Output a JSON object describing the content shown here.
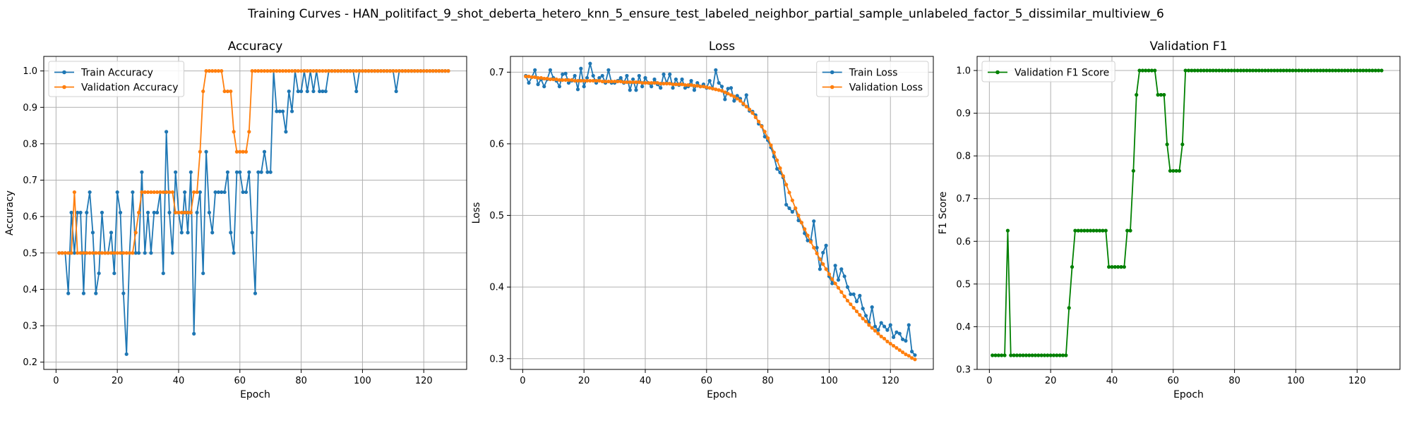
{
  "figure": {
    "suptitle": "Training Curves - HAN_politifact_9_shot_deberta_hetero_knn_5_ensure_test_labeled_neighbor_partial_sample_unlabeled_factor_5_dissimilar_multiview_6"
  },
  "colors": {
    "train": "#1f77b4",
    "validation": "#ff7f0e",
    "f1": "#008000",
    "grid": "#b0b0b0"
  },
  "chart_data": [
    {
      "type": "line",
      "title": "Accuracy",
      "xlabel": "Epoch",
      "ylabel": "Accuracy",
      "xlim": [
        -4,
        134
      ],
      "ylim": [
        0.18,
        1.04
      ],
      "xticks": [
        0,
        20,
        40,
        60,
        80,
        100,
        120
      ],
      "yticks": [
        0.2,
        0.3,
        0.4,
        0.5,
        0.6,
        0.7,
        0.8,
        0.9,
        1.0
      ],
      "ytick_decimals": 1,
      "grid": true,
      "legend_position": "top-left",
      "x": [
        1,
        2,
        3,
        4,
        5,
        6,
        7,
        8,
        9,
        10,
        11,
        12,
        13,
        14,
        15,
        16,
        17,
        18,
        19,
        20,
        21,
        22,
        23,
        24,
        25,
        26,
        27,
        28,
        29,
        30,
        31,
        32,
        33,
        34,
        35,
        36,
        37,
        38,
        39,
        40,
        41,
        42,
        43,
        44,
        45,
        46,
        47,
        48,
        49,
        50,
        51,
        52,
        53,
        54,
        55,
        56,
        57,
        58,
        59,
        60,
        61,
        62,
        63,
        64,
        65,
        66,
        67,
        68,
        69,
        70,
        71,
        72,
        73,
        74,
        75,
        76,
        77,
        78,
        79,
        80,
        81,
        82,
        83,
        84,
        85,
        86,
        87,
        88,
        89,
        90,
        91,
        92,
        93,
        94,
        95,
        96,
        97,
        98,
        99,
        100,
        101,
        102,
        103,
        104,
        105,
        106,
        107,
        108,
        109,
        110,
        111,
        112,
        113,
        114,
        115,
        116,
        117,
        118,
        119,
        120,
        121,
        122,
        123,
        124,
        125,
        126,
        127,
        128
      ],
      "series": [
        {
          "name": "Train Accuracy",
          "color": "#1f77b4",
          "values": [
            0.5,
            0.5,
            0.5,
            0.389,
            0.611,
            0.5,
            0.611,
            0.611,
            0.389,
            0.611,
            0.667,
            0.556,
            0.389,
            0.444,
            0.611,
            0.5,
            0.5,
            0.556,
            0.444,
            0.667,
            0.611,
            0.389,
            0.222,
            0.5,
            0.667,
            0.5,
            0.5,
            0.722,
            0.5,
            0.611,
            0.5,
            0.611,
            0.611,
            0.667,
            0.444,
            0.833,
            0.611,
            0.5,
            0.722,
            0.611,
            0.556,
            0.667,
            0.556,
            0.722,
            0.278,
            0.611,
            0.667,
            0.444,
            0.778,
            0.611,
            0.556,
            0.667,
            0.667,
            0.667,
            0.667,
            0.722,
            0.556,
            0.5,
            0.722,
            0.722,
            0.667,
            0.667,
            0.722,
            0.556,
            0.389,
            0.722,
            0.722,
            0.778,
            0.722,
            0.722,
            1.0,
            0.889,
            0.889,
            0.889,
            0.833,
            0.944,
            0.889,
            1.0,
            0.944,
            0.944,
            1.0,
            0.944,
            1.0,
            0.944,
            1.0,
            0.944,
            0.944,
            0.944,
            1.0,
            1.0,
            1.0,
            1.0,
            1.0,
            1.0,
            1.0,
            1.0,
            1.0,
            0.944,
            1.0,
            1.0,
            1.0,
            1.0,
            1.0,
            1.0,
            1.0,
            1.0,
            1.0,
            1.0,
            1.0,
            1.0,
            0.944,
            1.0,
            1.0,
            1.0,
            1.0,
            1.0,
            1.0,
            1.0,
            1.0,
            1.0,
            1.0,
            1.0,
            1.0,
            1.0,
            1.0,
            1.0,
            1.0,
            1.0
          ]
        },
        {
          "name": "Validation Accuracy",
          "color": "#ff7f0e",
          "values": [
            0.5,
            0.5,
            0.5,
            0.5,
            0.5,
            0.667,
            0.5,
            0.5,
            0.5,
            0.5,
            0.5,
            0.5,
            0.5,
            0.5,
            0.5,
            0.5,
            0.5,
            0.5,
            0.5,
            0.5,
            0.5,
            0.5,
            0.5,
            0.5,
            0.5,
            0.556,
            0.611,
            0.667,
            0.667,
            0.667,
            0.667,
            0.667,
            0.667,
            0.667,
            0.667,
            0.667,
            0.667,
            0.667,
            0.611,
            0.611,
            0.611,
            0.611,
            0.611,
            0.611,
            0.667,
            0.667,
            0.778,
            0.944,
            1.0,
            1.0,
            1.0,
            1.0,
            1.0,
            1.0,
            0.944,
            0.944,
            0.944,
            0.833,
            0.778,
            0.778,
            0.778,
            0.778,
            0.833,
            1.0,
            1.0,
            1.0,
            1.0,
            1.0,
            1.0,
            1.0,
            1.0,
            1.0,
            1.0,
            1.0,
            1.0,
            1.0,
            1.0,
            1.0,
            1.0,
            1.0,
            1.0,
            1.0,
            1.0,
            1.0,
            1.0,
            1.0,
            1.0,
            1.0,
            1.0,
            1.0,
            1.0,
            1.0,
            1.0,
            1.0,
            1.0,
            1.0,
            1.0,
            1.0,
            1.0,
            1.0,
            1.0,
            1.0,
            1.0,
            1.0,
            1.0,
            1.0,
            1.0,
            1.0,
            1.0,
            1.0,
            1.0,
            1.0,
            1.0,
            1.0,
            1.0,
            1.0,
            1.0,
            1.0,
            1.0,
            1.0,
            1.0,
            1.0,
            1.0,
            1.0,
            1.0,
            1.0,
            1.0,
            1.0
          ]
        }
      ]
    },
    {
      "type": "line",
      "title": "Loss",
      "xlabel": "Epoch",
      "ylabel": "Loss",
      "xlim": [
        -4,
        134
      ],
      "ylim": [
        0.285,
        0.722
      ],
      "xticks": [
        0,
        20,
        40,
        60,
        80,
        100,
        120
      ],
      "yticks": [
        0.3,
        0.4,
        0.5,
        0.6,
        0.7
      ],
      "ytick_decimals": 1,
      "grid": true,
      "legend_position": "top-right",
      "x": [
        1,
        2,
        3,
        4,
        5,
        6,
        7,
        8,
        9,
        10,
        11,
        12,
        13,
        14,
        15,
        16,
        17,
        18,
        19,
        20,
        21,
        22,
        23,
        24,
        25,
        26,
        27,
        28,
        29,
        30,
        31,
        32,
        33,
        34,
        35,
        36,
        37,
        38,
        39,
        40,
        41,
        42,
        43,
        44,
        45,
        46,
        47,
        48,
        49,
        50,
        51,
        52,
        53,
        54,
        55,
        56,
        57,
        58,
        59,
        60,
        61,
        62,
        63,
        64,
        65,
        66,
        67,
        68,
        69,
        70,
        71,
        72,
        73,
        74,
        75,
        76,
        77,
        78,
        79,
        80,
        81,
        82,
        83,
        84,
        85,
        86,
        87,
        88,
        89,
        90,
        91,
        92,
        93,
        94,
        95,
        96,
        97,
        98,
        99,
        100,
        101,
        102,
        103,
        104,
        105,
        106,
        107,
        108,
        109,
        110,
        111,
        112,
        113,
        114,
        115,
        116,
        117,
        118,
        119,
        120,
        121,
        122,
        123,
        124,
        125,
        126,
        127,
        128
      ],
      "series": [
        {
          "name": "Train Loss",
          "color": "#1f77b4",
          "values": [
            0.695,
            0.685,
            0.693,
            0.703,
            0.683,
            0.69,
            0.68,
            0.69,
            0.703,
            0.692,
            0.688,
            0.68,
            0.697,
            0.698,
            0.685,
            0.688,
            0.695,
            0.676,
            0.705,
            0.68,
            0.692,
            0.712,
            0.695,
            0.685,
            0.692,
            0.695,
            0.685,
            0.703,
            0.685,
            0.685,
            0.688,
            0.692,
            0.685,
            0.695,
            0.675,
            0.69,
            0.675,
            0.695,
            0.68,
            0.692,
            0.685,
            0.68,
            0.69,
            0.683,
            0.678,
            0.697,
            0.685,
            0.697,
            0.678,
            0.69,
            0.682,
            0.69,
            0.678,
            0.68,
            0.688,
            0.675,
            0.685,
            0.68,
            0.683,
            0.678,
            0.688,
            0.677,
            0.703,
            0.685,
            0.68,
            0.662,
            0.677,
            0.678,
            0.66,
            0.667,
            0.663,
            0.655,
            0.668,
            0.646,
            0.645,
            0.64,
            0.628,
            0.625,
            0.61,
            0.605,
            0.595,
            0.582,
            0.565,
            0.56,
            0.553,
            0.515,
            0.51,
            0.505,
            0.51,
            0.493,
            0.49,
            0.475,
            0.465,
            0.465,
            0.492,
            0.455,
            0.425,
            0.448,
            0.458,
            0.415,
            0.405,
            0.43,
            0.41,
            0.425,
            0.415,
            0.4,
            0.39,
            0.39,
            0.38,
            0.388,
            0.37,
            0.36,
            0.35,
            0.372,
            0.345,
            0.34,
            0.35,
            0.345,
            0.34,
            0.347,
            0.33,
            0.337,
            0.335,
            0.327,
            0.325,
            0.347,
            0.31,
            0.305
          ]
        },
        {
          "name": "Validation Loss",
          "color": "#ff7f0e",
          "values": [
            0.694,
            0.694,
            0.693,
            0.693,
            0.692,
            0.692,
            0.691,
            0.691,
            0.69,
            0.69,
            0.69,
            0.689,
            0.689,
            0.689,
            0.689,
            0.689,
            0.688,
            0.688,
            0.688,
            0.688,
            0.688,
            0.688,
            0.688,
            0.688,
            0.688,
            0.687,
            0.687,
            0.687,
            0.687,
            0.687,
            0.687,
            0.687,
            0.686,
            0.686,
            0.686,
            0.686,
            0.686,
            0.686,
            0.685,
            0.685,
            0.685,
            0.685,
            0.685,
            0.685,
            0.684,
            0.684,
            0.684,
            0.684,
            0.683,
            0.683,
            0.683,
            0.683,
            0.682,
            0.682,
            0.682,
            0.681,
            0.681,
            0.68,
            0.68,
            0.679,
            0.678,
            0.677,
            0.676,
            0.675,
            0.674,
            0.672,
            0.67,
            0.668,
            0.666,
            0.663,
            0.66,
            0.656,
            0.652,
            0.648,
            0.643,
            0.637,
            0.631,
            0.624,
            0.617,
            0.608,
            0.598,
            0.588,
            0.577,
            0.566,
            0.555,
            0.543,
            0.532,
            0.521,
            0.51,
            0.5,
            0.49,
            0.481,
            0.472,
            0.463,
            0.455,
            0.447,
            0.439,
            0.432,
            0.425,
            0.418,
            0.411,
            0.405,
            0.399,
            0.393,
            0.387,
            0.381,
            0.376,
            0.371,
            0.366,
            0.361,
            0.356,
            0.352,
            0.347,
            0.343,
            0.339,
            0.335,
            0.331,
            0.328,
            0.324,
            0.321,
            0.318,
            0.315,
            0.312,
            0.309,
            0.306,
            0.304,
            0.301,
            0.299
          ]
        }
      ]
    },
    {
      "type": "line",
      "title": "Validation F1",
      "xlabel": "Epoch",
      "ylabel": "F1 Score",
      "xlim": [
        -4,
        134
      ],
      "ylim": [
        0.3,
        1.033
      ],
      "xticks": [
        0,
        20,
        40,
        60,
        80,
        100,
        120
      ],
      "yticks": [
        0.3,
        0.4,
        0.5,
        0.6,
        0.7,
        0.8,
        0.9,
        1.0
      ],
      "ytick_decimals": 1,
      "grid": true,
      "legend_position": "top-left",
      "x": [
        1,
        2,
        3,
        4,
        5,
        6,
        7,
        8,
        9,
        10,
        11,
        12,
        13,
        14,
        15,
        16,
        17,
        18,
        19,
        20,
        21,
        22,
        23,
        24,
        25,
        26,
        27,
        28,
        29,
        30,
        31,
        32,
        33,
        34,
        35,
        36,
        37,
        38,
        39,
        40,
        41,
        42,
        43,
        44,
        45,
        46,
        47,
        48,
        49,
        50,
        51,
        52,
        53,
        54,
        55,
        56,
        57,
        58,
        59,
        60,
        61,
        62,
        63,
        64,
        65,
        66,
        67,
        68,
        69,
        70,
        71,
        72,
        73,
        74,
        75,
        76,
        77,
        78,
        79,
        80,
        81,
        82,
        83,
        84,
        85,
        86,
        87,
        88,
        89,
        90,
        91,
        92,
        93,
        94,
        95,
        96,
        97,
        98,
        99,
        100,
        101,
        102,
        103,
        104,
        105,
        106,
        107,
        108,
        109,
        110,
        111,
        112,
        113,
        114,
        115,
        116,
        117,
        118,
        119,
        120,
        121,
        122,
        123,
        124,
        125,
        126,
        127,
        128
      ],
      "series": [
        {
          "name": "Validation F1 Score",
          "color": "#008000",
          "values": [
            0.333,
            0.333,
            0.333,
            0.333,
            0.333,
            0.625,
            0.333,
            0.333,
            0.333,
            0.333,
            0.333,
            0.333,
            0.333,
            0.333,
            0.333,
            0.333,
            0.333,
            0.333,
            0.333,
            0.333,
            0.333,
            0.333,
            0.333,
            0.333,
            0.333,
            0.444,
            0.54,
            0.625,
            0.625,
            0.625,
            0.625,
            0.625,
            0.625,
            0.625,
            0.625,
            0.625,
            0.625,
            0.625,
            0.54,
            0.54,
            0.54,
            0.54,
            0.54,
            0.54,
            0.625,
            0.625,
            0.765,
            0.943,
            1.0,
            1.0,
            1.0,
            1.0,
            1.0,
            1.0,
            0.943,
            0.943,
            0.943,
            0.827,
            0.765,
            0.765,
            0.765,
            0.765,
            0.827,
            1.0,
            1.0,
            1.0,
            1.0,
            1.0,
            1.0,
            1.0,
            1.0,
            1.0,
            1.0,
            1.0,
            1.0,
            1.0,
            1.0,
            1.0,
            1.0,
            1.0,
            1.0,
            1.0,
            1.0,
            1.0,
            1.0,
            1.0,
            1.0,
            1.0,
            1.0,
            1.0,
            1.0,
            1.0,
            1.0,
            1.0,
            1.0,
            1.0,
            1.0,
            1.0,
            1.0,
            1.0,
            1.0,
            1.0,
            1.0,
            1.0,
            1.0,
            1.0,
            1.0,
            1.0,
            1.0,
            1.0,
            1.0,
            1.0,
            1.0,
            1.0,
            1.0,
            1.0,
            1.0,
            1.0,
            1.0,
            1.0,
            1.0,
            1.0,
            1.0,
            1.0,
            1.0,
            1.0,
            1.0,
            1.0
          ]
        }
      ]
    }
  ]
}
